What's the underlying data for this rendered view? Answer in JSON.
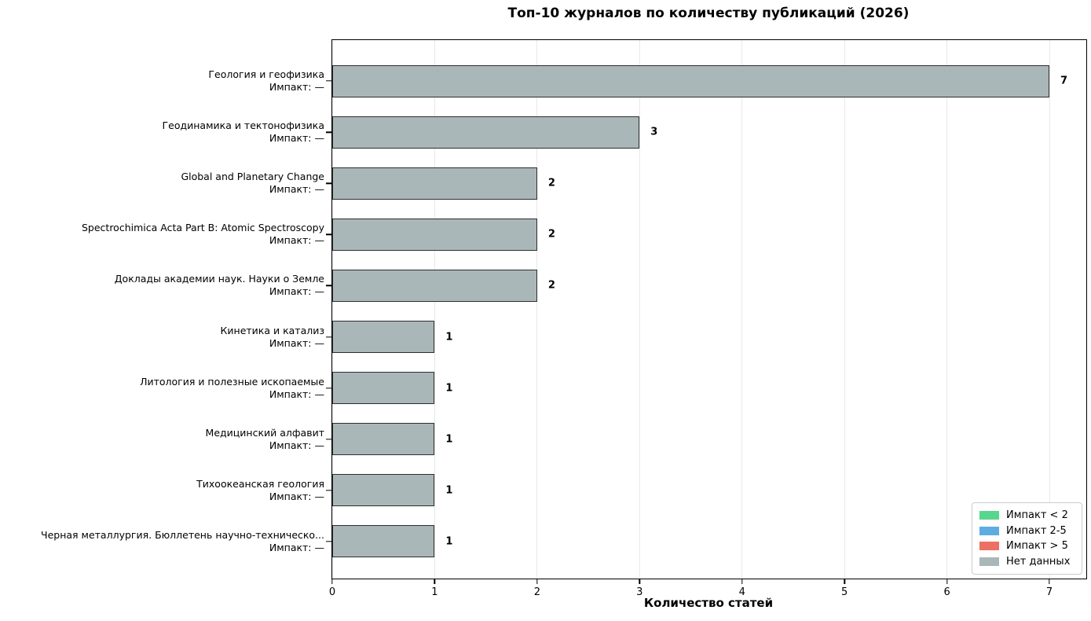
{
  "chart_data": {
    "type": "bar",
    "orientation": "horizontal",
    "title": "Топ-10 журналов по количеству публикаций (2026)",
    "xlabel": "Количество статей",
    "xlim": [
      0,
      7.36
    ],
    "xticks": [
      0,
      1,
      2,
      3,
      4,
      5,
      6,
      7
    ],
    "grid": "vertical",
    "bar_color": "#aab7b8",
    "bar_edge_color": "#2e2e2e",
    "bars": [
      {
        "journal": "Геология и геофизика",
        "impact_note": "Импакт: —",
        "value": 7
      },
      {
        "journal": "Геодинамика и тектонофизика",
        "impact_note": "Импакт: —",
        "value": 3
      },
      {
        "journal": "Global and Planetary Change",
        "impact_note": "Импакт: —",
        "value": 2
      },
      {
        "journal": "Spectrochimica Acta Part B: Atomic Spectroscopy",
        "impact_note": "Импакт: —",
        "value": 2
      },
      {
        "journal": "Доклады академии наук. Науки о Земле",
        "impact_note": "Импакт: —",
        "value": 2
      },
      {
        "journal": "Кинетика и катализ",
        "impact_note": "Импакт: —",
        "value": 1
      },
      {
        "journal": "Литология и полезные ископаемые",
        "impact_note": "Импакт: —",
        "value": 1
      },
      {
        "journal": "Медицинский алфавит",
        "impact_note": "Импакт: —",
        "value": 1
      },
      {
        "journal": "Тихоокеанская геология",
        "impact_note": "Импакт: —",
        "value": 1
      },
      {
        "journal": "Черная металлургия. Бюллетень научно-техническо...",
        "impact_note": "Импакт: —",
        "value": 1
      }
    ],
    "legend": {
      "position": "lower right",
      "entries": [
        {
          "label": "Импакт < 2",
          "color": "#58d68d"
        },
        {
          "label": "Импакт 2-5",
          "color": "#5dade2"
        },
        {
          "label": "Импакт > 5",
          "color": "#ec7063"
        },
        {
          "label": "Нет данных",
          "color": "#aab7b8"
        }
      ]
    }
  }
}
